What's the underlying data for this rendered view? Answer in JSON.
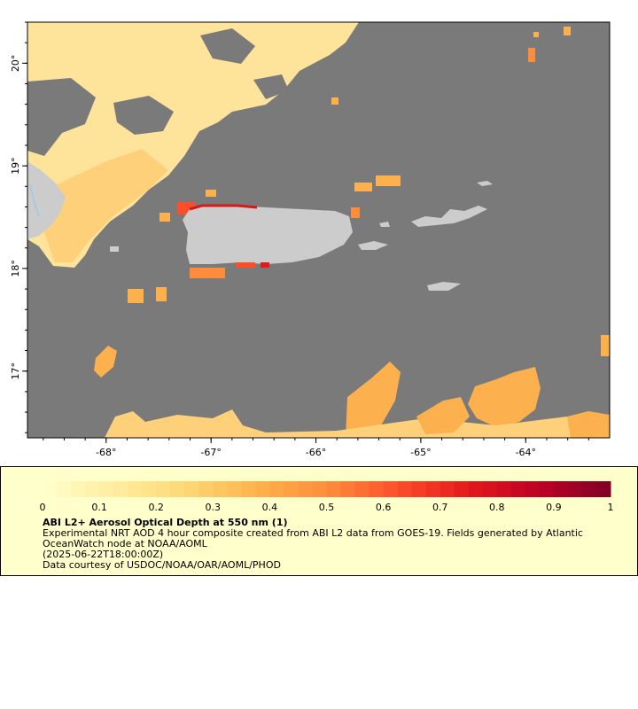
{
  "map": {
    "title": "ABI L2+ Aerosol Optical Depth at 550 nm (1)",
    "lon_range": [
      -68.75,
      -63.2
    ],
    "lat_range": [
      16.35,
      20.4
    ],
    "lon_ticks": [
      {
        "value": -68,
        "label": "-68°"
      },
      {
        "value": -67,
        "label": "-67°"
      },
      {
        "value": -66,
        "label": "-66°"
      },
      {
        "value": -65,
        "label": "-65°"
      },
      {
        "value": -64,
        "label": "-64°"
      }
    ],
    "lat_ticks": [
      {
        "value": 20,
        "label": "20°"
      },
      {
        "value": 19,
        "label": "19°"
      },
      {
        "value": 18,
        "label": "18°"
      },
      {
        "value": 17,
        "label": "17°"
      }
    ],
    "colors": {
      "no_data": "#7a7a7a",
      "land": "#cccccc",
      "water_inland": "#a0c8e8"
    }
  },
  "colorbar": {
    "min": 0,
    "max": 1,
    "steps": 40,
    "tick_labels": [
      "0",
      "0.1",
      "0.2",
      "0.3",
      "0.4",
      "0.5",
      "0.6",
      "0.7",
      "0.8",
      "0.9",
      "1"
    ],
    "colors": [
      "#ffffcc",
      "#ffeda0",
      "#fed976",
      "#feb24c",
      "#fd8d3c",
      "#fc4e2a",
      "#e31a1c",
      "#bd0026",
      "#800026"
    ]
  },
  "legend": {
    "title": "ABI L2+ Aerosol Optical Depth at 550 nm (1)",
    "description": "Experimental NRT AOD 4 hour composite created from ABI L2 data from GOES-19. Fields generated by Atlantic OceanWatch node at NOAA/AOML",
    "date": "(2025-06-22T18:00:00Z)",
    "credit": "Data courtesy of USDOC/NOAA/OAR/AOML/PHOD"
  }
}
